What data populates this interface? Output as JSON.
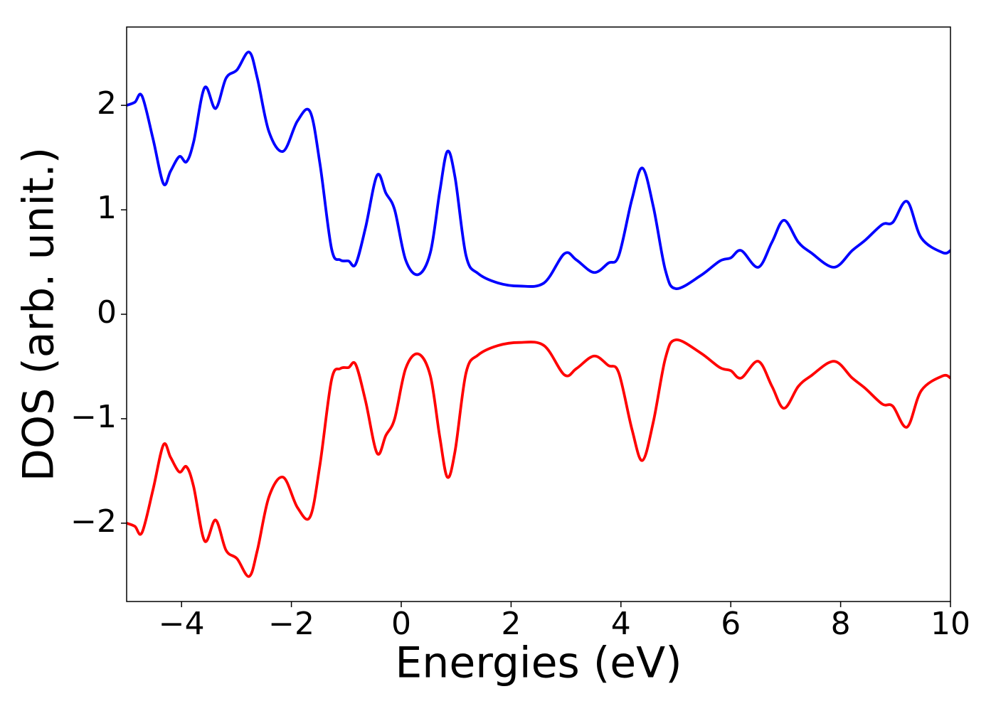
{
  "chart_data": {
    "type": "line",
    "xlabel": "Energies (eV)",
    "ylabel": "DOS (arb. unit.)",
    "x": [
      -5,
      -4.85,
      -4.72,
      -4.52,
      -4.33,
      -4.2,
      -4.04,
      -3.91,
      -3.78,
      -3.58,
      -3.38,
      -3.19,
      -2.99,
      -2.77,
      -2.62,
      -2.41,
      -2.15,
      -1.89,
      -1.66,
      -1.48,
      -1.27,
      -1.11,
      -0.96,
      -0.83,
      -0.65,
      -0.44,
      -0.28,
      -0.12,
      0.08,
      0.31,
      0.53,
      0.7,
      0.84,
      0.98,
      1.18,
      1.4,
      1.76,
      2.15,
      2.6,
      2.97,
      3.19,
      3.51,
      3.77,
      3.96,
      4.2,
      4.39,
      4.59,
      4.81,
      5.0,
      5.45,
      5.8,
      6.0,
      6.19,
      6.5,
      6.75,
      6.97,
      7.23,
      7.46,
      7.88,
      8.21,
      8.45,
      8.76,
      8.95,
      9.21,
      9.47,
      9.86,
      10.0
    ],
    "series": [
      {
        "color": "#0000ff",
        "values": [
          2.0,
          2.03,
          2.09,
          1.68,
          1.25,
          1.37,
          1.51,
          1.46,
          1.65,
          2.17,
          1.97,
          2.26,
          2.34,
          2.51,
          2.26,
          1.75,
          1.56,
          1.85,
          1.94,
          1.44,
          0.63,
          0.52,
          0.51,
          0.48,
          0.83,
          1.33,
          1.16,
          1.0,
          0.52,
          0.38,
          0.59,
          1.17,
          1.56,
          1.31,
          0.56,
          0.39,
          0.3,
          0.27,
          0.3,
          0.58,
          0.52,
          0.4,
          0.49,
          0.56,
          1.1,
          1.4,
          1.03,
          0.42,
          0.245,
          0.37,
          0.51,
          0.54,
          0.61,
          0.45,
          0.69,
          0.9,
          0.69,
          0.59,
          0.45,
          0.61,
          0.71,
          0.86,
          0.88,
          1.08,
          0.73,
          0.59,
          0.61
        ]
      },
      {
        "color": "#ff0000",
        "values": [
          -2.0,
          -2.03,
          -2.09,
          -1.68,
          -1.25,
          -1.37,
          -1.51,
          -1.46,
          -1.65,
          -2.17,
          -1.97,
          -2.26,
          -2.34,
          -2.51,
          -2.26,
          -1.75,
          -1.56,
          -1.85,
          -1.94,
          -1.44,
          -0.63,
          -0.52,
          -0.51,
          -0.48,
          -0.83,
          -1.33,
          -1.16,
          -1.0,
          -0.52,
          -0.38,
          -0.59,
          -1.17,
          -1.56,
          -1.31,
          -0.56,
          -0.39,
          -0.3,
          -0.27,
          -0.3,
          -0.58,
          -0.52,
          -0.4,
          -0.49,
          -0.56,
          -1.1,
          -1.4,
          -1.03,
          -0.42,
          -0.245,
          -0.37,
          -0.51,
          -0.54,
          -0.61,
          -0.45,
          -0.69,
          -0.9,
          -0.69,
          -0.59,
          -0.45,
          -0.61,
          -0.71,
          -0.86,
          -0.88,
          -1.08,
          -0.73,
          -0.59,
          -0.61
        ]
      }
    ],
    "xlim": [
      -5,
      10
    ],
    "xticks": [
      {
        "value": -4,
        "label": "−4"
      },
      {
        "value": -2,
        "label": "−2"
      },
      0,
      2,
      4,
      6,
      8,
      10
    ],
    "ylim": [
      -2.75,
      2.75
    ],
    "yticks": [
      {
        "value": -2,
        "label": "−2"
      },
      {
        "value": -1,
        "label": "−1"
      },
      0,
      1,
      2
    ],
    "grid": false
  }
}
